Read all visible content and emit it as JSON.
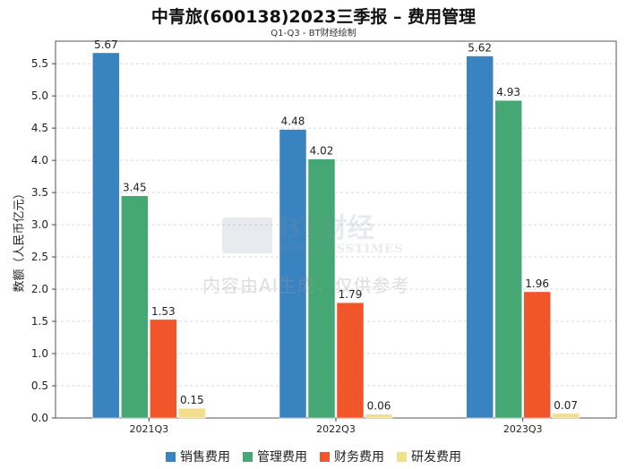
{
  "title": "中青旅(600138)2023三季报 – 费用管理",
  "subtitle": "Q1-Q3 - BT财经绘制",
  "watermark": {
    "logo_main": "BT财经",
    "logo_sub": "BUSINESSTIMES",
    "text": "内容由AI生成，仅供参考"
  },
  "colors": {
    "sales": "#3a83c1",
    "admin": "#45a874",
    "finance": "#f1552a",
    "rd": "#f2de8c"
  },
  "chart_data": {
    "type": "bar",
    "title": "中青旅(600138)2023三季报 – 费用管理",
    "subtitle": "Q1-Q3 - BT财经绘制",
    "xlabel": "",
    "ylabel": "数额（人民币亿元）",
    "categories": [
      "2021Q3",
      "2022Q3",
      "2023Q3"
    ],
    "ylim": [
      0,
      5.85
    ],
    "yticks": [
      "0.0",
      "0.5",
      "1.0",
      "1.5",
      "2.0",
      "2.5",
      "3.0",
      "3.5",
      "4.0",
      "4.5",
      "5.0",
      "5.5"
    ],
    "grid": true,
    "legend_position": "bottom",
    "series": [
      {
        "name": "销售费用",
        "color_key": "sales",
        "values": [
          5.67,
          4.48,
          5.62
        ],
        "labels": [
          "5.67",
          "4.48",
          "5.62"
        ]
      },
      {
        "name": "管理费用",
        "color_key": "admin",
        "values": [
          3.45,
          4.02,
          4.93
        ],
        "labels": [
          "3.45",
          "4.02",
          "4.93"
        ]
      },
      {
        "name": "财务费用",
        "color_key": "finance",
        "values": [
          1.53,
          1.79,
          1.96
        ],
        "labels": [
          "1.53",
          "1.79",
          "1.96"
        ]
      },
      {
        "name": "研发费用",
        "color_key": "rd",
        "values": [
          0.15,
          0.06,
          0.07
        ],
        "labels": [
          "0.15",
          "0.06",
          "0.07"
        ]
      }
    ]
  }
}
